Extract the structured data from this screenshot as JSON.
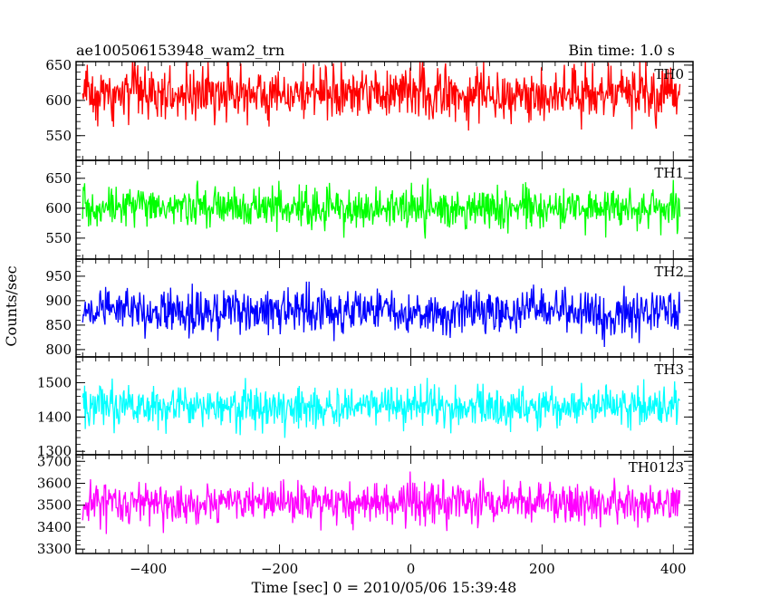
{
  "header": {
    "title": "ae100506153948_wam2_trn",
    "bin_time": "Bin time: 1.0 s"
  },
  "axes": {
    "xlabel": "Time [sec] 0 = 2010/05/06 15:39:48",
    "ylabel": "Counts/sec",
    "x_ticks": [
      "−400",
      "−200",
      "0",
      "200",
      "400"
    ]
  },
  "colors": {
    "TH0": "#ff0000",
    "TH1": "#00ff00",
    "TH2": "#0000ff",
    "TH3": "#00ffff",
    "TH0123": "#ff00ff"
  },
  "chart_data": {
    "type": "line",
    "xlim": [
      -510,
      430
    ],
    "x_range": [
      -500,
      410
    ],
    "x_step": 1.0,
    "panels": [
      {
        "name": "TH0",
        "color": "#ff0000",
        "ylim": [
          515,
          655
        ],
        "yticks": [
          550,
          600,
          650
        ],
        "mean": 610,
        "amplitude": 28,
        "clip": [
          532,
          655
        ]
      },
      {
        "name": "TH1",
        "color": "#00ff00",
        "ylim": [
          515,
          680
        ],
        "yticks": [
          550,
          600,
          650
        ],
        "mean": 600,
        "amplitude": 25,
        "clip": [
          530,
          680
        ]
      },
      {
        "name": "TH2",
        "color": "#0000ff",
        "ylim": [
          785,
          985
        ],
        "yticks": [
          800,
          850,
          900,
          950
        ],
        "mean": 878,
        "amplitude": 33,
        "clip": [
          785,
          985
        ]
      },
      {
        "name": "TH3",
        "color": "#00ffff",
        "ylim": [
          1290,
          1575
        ],
        "yticks": [
          1300,
          1400,
          1500
        ],
        "mean": 1430,
        "amplitude": 45,
        "clip": [
          1290,
          1575
        ]
      },
      {
        "name": "TH0123",
        "color": "#ff00ff",
        "ylim": [
          3280,
          3730
        ],
        "yticks": [
          3300,
          3400,
          3500,
          3600,
          3700
        ],
        "mean": 3510,
        "amplitude": 70,
        "clip": [
          3280,
          3730
        ]
      }
    ]
  }
}
